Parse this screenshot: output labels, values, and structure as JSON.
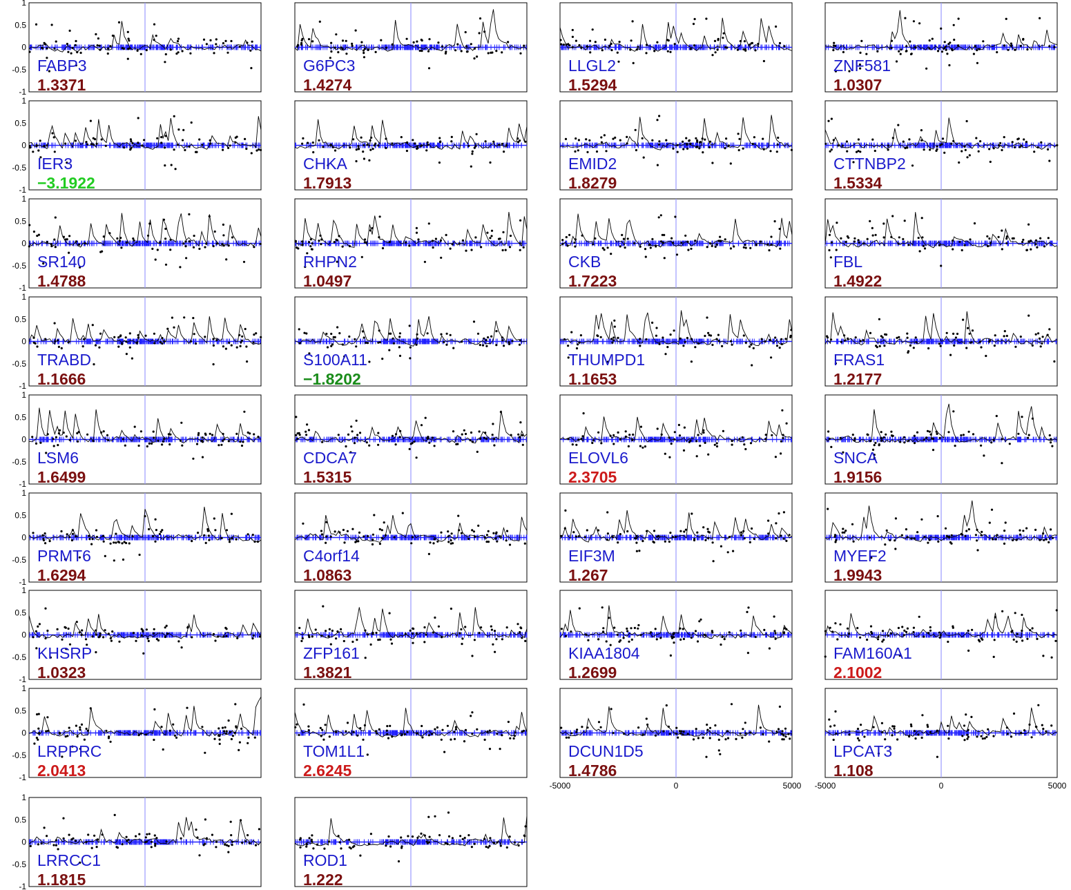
{
  "figure": {
    "background": "#ffffff",
    "colors": {
      "axis_line": "#2020ff",
      "center_line": "#9a9aff",
      "ticks": "#2020ff",
      "curve": "#000000",
      "points": "#000000",
      "gene_label": "#1a1acc",
      "score_dark_red": "#7a1010",
      "score_red": "#cc1a1a",
      "score_green_bright": "#22cc22",
      "score_green": "#1a8c1a"
    }
  },
  "chart_data": {
    "type": "grid-of-scatter-line-panels",
    "layout": {
      "rows": 9,
      "cols": 4,
      "panel_count": 34
    },
    "x_range": [
      -5000,
      5000
    ],
    "y_range": [
      -1,
      1
    ],
    "y_tick_labels": [
      "1",
      "0.5",
      "0",
      "-0.5",
      "-1"
    ],
    "x_tick_labels": [
      "-5000",
      "0",
      "5000"
    ],
    "panels": [
      {
        "gene": "FABP3",
        "score": "1.3371",
        "score_color": "dark_red"
      },
      {
        "gene": "G6PC3",
        "score": "1.4274",
        "score_color": "dark_red"
      },
      {
        "gene": "LLGL2",
        "score": "1.5294",
        "score_color": "dark_red"
      },
      {
        "gene": "ZNF581",
        "score": "1.0307",
        "score_color": "dark_red"
      },
      {
        "gene": "IER3",
        "score": "−3.1922",
        "score_color": "green_bright"
      },
      {
        "gene": "CHKA",
        "score": "1.7913",
        "score_color": "dark_red"
      },
      {
        "gene": "EMID2",
        "score": "1.8279",
        "score_color": "dark_red"
      },
      {
        "gene": "CTTNBP2",
        "score": "1.5334",
        "score_color": "dark_red"
      },
      {
        "gene": "SR140",
        "score": "1.4788",
        "score_color": "dark_red"
      },
      {
        "gene": "RHPN2",
        "score": "1.0497",
        "score_color": "dark_red"
      },
      {
        "gene": "CKB",
        "score": "1.7223",
        "score_color": "dark_red"
      },
      {
        "gene": "FBL",
        "score": "1.4922",
        "score_color": "dark_red"
      },
      {
        "gene": "TRABD",
        "score": "1.1666",
        "score_color": "dark_red"
      },
      {
        "gene": "S100A11",
        "score": "−1.8202",
        "score_color": "green"
      },
      {
        "gene": "THUMPD1",
        "score": "1.1653",
        "score_color": "dark_red"
      },
      {
        "gene": "FRAS1",
        "score": "1.2177",
        "score_color": "dark_red"
      },
      {
        "gene": "LSM6",
        "score": "1.6499",
        "score_color": "dark_red"
      },
      {
        "gene": "CDCA7",
        "score": "1.5315",
        "score_color": "dark_red"
      },
      {
        "gene": "ELOVL6",
        "score": "2.3705",
        "score_color": "red"
      },
      {
        "gene": "SNCA",
        "score": "1.9156",
        "score_color": "dark_red"
      },
      {
        "gene": "PRMT6",
        "score": "1.6294",
        "score_color": "dark_red"
      },
      {
        "gene": "C4orf14",
        "score": "1.0863",
        "score_color": "dark_red"
      },
      {
        "gene": "EIF3M",
        "score": "1.267",
        "score_color": "dark_red"
      },
      {
        "gene": "MYEF2",
        "score": "1.9943",
        "score_color": "dark_red"
      },
      {
        "gene": "KHSRP",
        "score": "1.0323",
        "score_color": "dark_red"
      },
      {
        "gene": "ZFP161",
        "score": "1.3821",
        "score_color": "dark_red"
      },
      {
        "gene": "KIAA1804",
        "score": "1.2699",
        "score_color": "dark_red"
      },
      {
        "gene": "FAM160A1",
        "score": "2.1002",
        "score_color": "red"
      },
      {
        "gene": "LRPPRC",
        "score": "2.0413",
        "score_color": "red"
      },
      {
        "gene": "TOM1L1",
        "score": "2.6245",
        "score_color": "red"
      },
      {
        "gene": "DCUN1D5",
        "score": "1.4786",
        "score_color": "dark_red"
      },
      {
        "gene": "LPCAT3",
        "score": "1.108",
        "score_color": "dark_red"
      },
      {
        "gene": "LRRCC1",
        "score": "1.1815",
        "score_color": "dark_red"
      },
      {
        "gene": "ROD1",
        "score": "1.222",
        "score_color": "dark_red"
      }
    ]
  }
}
